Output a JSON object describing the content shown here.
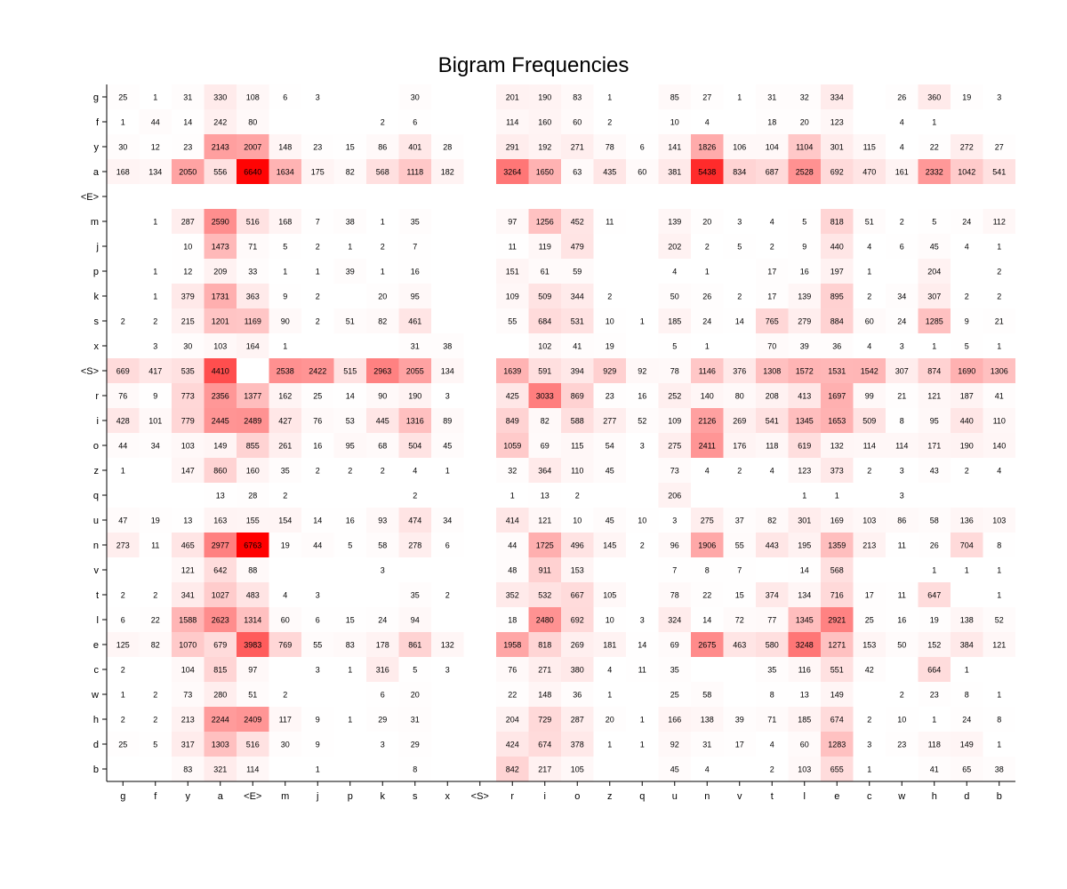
{
  "chart_data": {
    "type": "heatmap",
    "title": "Bigram Frequencies",
    "colormap": {
      "low": "#ffffff",
      "high": "#ff0000"
    },
    "x_categories": [
      "g",
      "f",
      "y",
      "a",
      "<E>",
      "m",
      "j",
      "p",
      "k",
      "s",
      "x",
      "<S>",
      "r",
      "i",
      "o",
      "z",
      "q",
      "u",
      "n",
      "v",
      "t",
      "l",
      "e",
      "c",
      "w",
      "h",
      "d",
      "b"
    ],
    "y_categories": [
      "g",
      "f",
      "y",
      "a",
      "<E>",
      "m",
      "j",
      "p",
      "k",
      "s",
      "x",
      "<S>",
      "r",
      "i",
      "o",
      "z",
      "q",
      "u",
      "n",
      "v",
      "t",
      "l",
      "e",
      "c",
      "w",
      "h",
      "d",
      "b"
    ],
    "values": [
      [
        25,
        1,
        31,
        330,
        108,
        6,
        3,
        null,
        null,
        30,
        null,
        null,
        201,
        190,
        83,
        1,
        null,
        85,
        27,
        1,
        31,
        32,
        334,
        null,
        26,
        360,
        19,
        3
      ],
      [
        1,
        44,
        14,
        242,
        80,
        null,
        null,
        null,
        2,
        6,
        null,
        null,
        114,
        160,
        60,
        2,
        null,
        10,
        4,
        null,
        18,
        20,
        123,
        null,
        4,
        1,
        null,
        null
      ],
      [
        30,
        12,
        23,
        2143,
        2007,
        148,
        23,
        15,
        86,
        401,
        28,
        null,
        291,
        192,
        271,
        78,
        6,
        141,
        1826,
        106,
        104,
        1104,
        301,
        115,
        4,
        22,
        272,
        27
      ],
      [
        168,
        134,
        2050,
        556,
        6640,
        1634,
        175,
        82,
        568,
        1118,
        182,
        null,
        3264,
        1650,
        63,
        435,
        60,
        381,
        5438,
        834,
        687,
        2528,
        692,
        470,
        161,
        2332,
        1042,
        541
      ],
      [
        null,
        null,
        null,
        null,
        null,
        null,
        null,
        null,
        null,
        null,
        null,
        null,
        null,
        null,
        null,
        null,
        null,
        null,
        null,
        null,
        null,
        null,
        null,
        null,
        null,
        null,
        null,
        null
      ],
      [
        null,
        1,
        287,
        2590,
        516,
        168,
        7,
        38,
        1,
        35,
        null,
        null,
        97,
        1256,
        452,
        11,
        null,
        139,
        20,
        3,
        4,
        5,
        818,
        51,
        2,
        5,
        24,
        112
      ],
      [
        null,
        null,
        10,
        1473,
        71,
        5,
        2,
        1,
        2,
        7,
        null,
        null,
        11,
        119,
        479,
        null,
        null,
        202,
        2,
        5,
        2,
        9,
        440,
        4,
        6,
        45,
        4,
        1
      ],
      [
        null,
        1,
        12,
        209,
        33,
        1,
        1,
        39,
        1,
        16,
        null,
        null,
        151,
        61,
        59,
        null,
        null,
        4,
        1,
        null,
        17,
        16,
        197,
        1,
        null,
        204,
        null,
        2
      ],
      [
        null,
        1,
        379,
        1731,
        363,
        9,
        2,
        null,
        20,
        95,
        null,
        null,
        109,
        509,
        344,
        2,
        null,
        50,
        26,
        2,
        17,
        139,
        895,
        2,
        34,
        307,
        2,
        2
      ],
      [
        2,
        2,
        215,
        1201,
        1169,
        90,
        2,
        51,
        82,
        461,
        null,
        null,
        55,
        684,
        531,
        10,
        1,
        185,
        24,
        14,
        765,
        279,
        884,
        60,
        24,
        1285,
        9,
        21
      ],
      [
        null,
        3,
        30,
        103,
        164,
        1,
        null,
        null,
        null,
        31,
        38,
        null,
        null,
        102,
        41,
        19,
        null,
        5,
        1,
        null,
        70,
        39,
        36,
        4,
        3,
        1,
        5,
        1
      ],
      [
        669,
        417,
        535,
        4410,
        null,
        2538,
        2422,
        515,
        2963,
        2055,
        134,
        null,
        1639,
        591,
        394,
        929,
        92,
        78,
        1146,
        376,
        1308,
        1572,
        1531,
        1542,
        307,
        874,
        1690,
        1306
      ],
      [
        76,
        9,
        773,
        2356,
        1377,
        162,
        25,
        14,
        90,
        190,
        3,
        null,
        425,
        3033,
        869,
        23,
        16,
        252,
        140,
        80,
        208,
        413,
        1697,
        99,
        21,
        121,
        187,
        41
      ],
      [
        428,
        101,
        779,
        2445,
        2489,
        427,
        76,
        53,
        445,
        1316,
        89,
        null,
        849,
        82,
        588,
        277,
        52,
        109,
        2126,
        269,
        541,
        1345,
        1653,
        509,
        8,
        95,
        440,
        110
      ],
      [
        44,
        34,
        103,
        149,
        855,
        261,
        16,
        95,
        68,
        504,
        45,
        null,
        1059,
        69,
        115,
        54,
        3,
        275,
        2411,
        176,
        118,
        619,
        132,
        114,
        114,
        171,
        190,
        140
      ],
      [
        1,
        null,
        147,
        860,
        160,
        35,
        2,
        2,
        2,
        4,
        1,
        null,
        32,
        364,
        110,
        45,
        null,
        73,
        4,
        2,
        4,
        123,
        373,
        2,
        3,
        43,
        2,
        4
      ],
      [
        null,
        null,
        null,
        13,
        28,
        2,
        null,
        null,
        null,
        2,
        null,
        null,
        1,
        13,
        2,
        null,
        null,
        206,
        null,
        null,
        null,
        1,
        1,
        null,
        3,
        null,
        null,
        null
      ],
      [
        47,
        19,
        13,
        163,
        155,
        154,
        14,
        16,
        93,
        474,
        34,
        null,
        414,
        121,
        10,
        45,
        10,
        3,
        275,
        37,
        82,
        301,
        169,
        103,
        86,
        58,
        136,
        103
      ],
      [
        273,
        11,
        465,
        2977,
        6763,
        19,
        44,
        5,
        58,
        278,
        6,
        null,
        44,
        1725,
        496,
        145,
        2,
        96,
        1906,
        55,
        443,
        195,
        1359,
        213,
        11,
        26,
        704,
        8
      ],
      [
        null,
        null,
        121,
        642,
        88,
        null,
        null,
        null,
        3,
        null,
        null,
        null,
        48,
        911,
        153,
        null,
        null,
        7,
        8,
        7,
        null,
        14,
        568,
        null,
        null,
        1,
        1,
        1
      ],
      [
        2,
        2,
        341,
        1027,
        483,
        4,
        3,
        null,
        null,
        35,
        2,
        null,
        352,
        532,
        667,
        105,
        null,
        78,
        22,
        15,
        374,
        134,
        716,
        17,
        11,
        647,
        null,
        1
      ],
      [
        6,
        22,
        1588,
        2623,
        1314,
        60,
        6,
        15,
        24,
        94,
        null,
        null,
        18,
        2480,
        692,
        10,
        3,
        324,
        14,
        72,
        77,
        1345,
        2921,
        25,
        16,
        19,
        138,
        52
      ],
      [
        125,
        82,
        1070,
        679,
        3983,
        769,
        55,
        83,
        178,
        861,
        132,
        null,
        1958,
        818,
        269,
        181,
        14,
        69,
        2675,
        463,
        580,
        3248,
        1271,
        153,
        50,
        152,
        384,
        121
      ],
      [
        2,
        null,
        104,
        815,
        97,
        null,
        3,
        1,
        316,
        5,
        3,
        null,
        76,
        271,
        380,
        4,
        11,
        35,
        null,
        null,
        35,
        116,
        551,
        42,
        null,
        664,
        1,
        null
      ],
      [
        1,
        2,
        73,
        280,
        51,
        2,
        null,
        null,
        6,
        20,
        null,
        null,
        22,
        148,
        36,
        1,
        null,
        25,
        58,
        null,
        8,
        13,
        149,
        null,
        2,
        23,
        8,
        1
      ],
      [
        2,
        2,
        213,
        2244,
        2409,
        117,
        9,
        1,
        29,
        31,
        null,
        null,
        204,
        729,
        287,
        20,
        1,
        166,
        138,
        39,
        71,
        185,
        674,
        2,
        10,
        1,
        24,
        8
      ],
      [
        25,
        5,
        317,
        1303,
        516,
        30,
        9,
        null,
        3,
        29,
        null,
        null,
        424,
        674,
        378,
        1,
        1,
        92,
        31,
        17,
        4,
        60,
        1283,
        3,
        23,
        118,
        149,
        1
      ],
      [
        null,
        null,
        83,
        321,
        114,
        null,
        1,
        null,
        null,
        8,
        null,
        null,
        842,
        217,
        105,
        null,
        null,
        45,
        4,
        null,
        2,
        103,
        655,
        1,
        null,
        41,
        65,
        38
      ]
    ]
  }
}
